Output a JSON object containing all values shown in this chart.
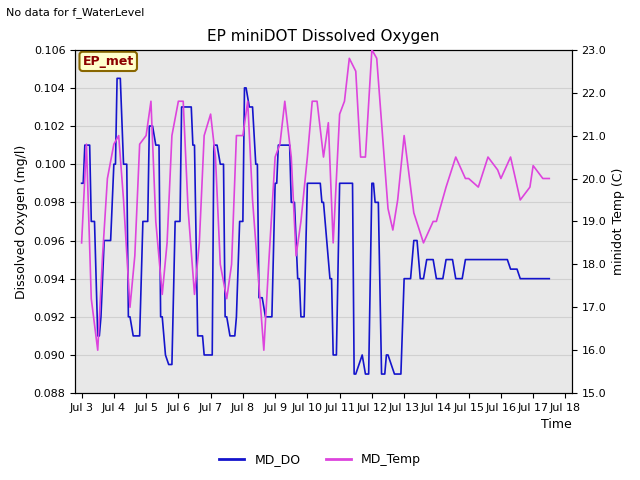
{
  "title": "EP miniDOT Dissolved Oxygen",
  "no_data_text": "No data for f_WaterLevel",
  "ep_met_label": "EP_met",
  "xlabel": "Time",
  "ylabel_left": "Dissolved Oxygen (mg/l)",
  "ylabel_right": "minidot Temp (C)",
  "ylim_left": [
    0.088,
    0.106
  ],
  "ylim_right": [
    15.0,
    23.0
  ],
  "yticks_left": [
    0.088,
    0.09,
    0.092,
    0.094,
    0.096,
    0.098,
    0.1,
    0.102,
    0.104,
    0.106
  ],
  "yticks_right": [
    15.0,
    16.0,
    17.0,
    18.0,
    19.0,
    20.0,
    21.0,
    22.0,
    23.0
  ],
  "xtick_labels": [
    "Jul 3",
    "Jul 4",
    "Jul 5",
    "Jul 6",
    "Jul 7",
    "Jul 8",
    "Jul 9",
    "Jul 10",
    "Jul 11",
    "Jul 12",
    "Jul 13",
    "Jul 14",
    "Jul 15",
    "Jul 16",
    "Jul 17",
    "Jul 18"
  ],
  "xtick_positions": [
    3,
    4,
    5,
    6,
    7,
    8,
    9,
    10,
    11,
    12,
    13,
    14,
    15,
    16,
    17,
    18
  ],
  "xlim": [
    2.8,
    18.2
  ],
  "grid_color": "#d0d0d0",
  "bg_color": "#e8e8e8",
  "line_do_color": "#1414cc",
  "line_temp_color": "#dd44dd",
  "legend_do": "MD_DO",
  "legend_temp": "MD_Temp",
  "do_x": [
    3.0,
    3.05,
    3.1,
    3.2,
    3.25,
    3.3,
    3.4,
    3.5,
    3.55,
    3.6,
    3.7,
    3.75,
    3.8,
    3.9,
    4.0,
    4.05,
    4.1,
    4.15,
    4.2,
    4.3,
    4.4,
    4.45,
    4.5,
    4.6,
    4.7,
    4.75,
    4.8,
    4.9,
    5.0,
    5.05,
    5.1,
    5.2,
    5.3,
    5.4,
    5.45,
    5.5,
    5.6,
    5.7,
    5.75,
    5.8,
    5.9,
    6.0,
    6.05,
    6.1,
    6.2,
    6.3,
    6.4,
    6.45,
    6.5,
    6.6,
    6.7,
    6.75,
    6.8,
    6.9,
    7.0,
    7.05,
    7.1,
    7.2,
    7.3,
    7.4,
    7.45,
    7.5,
    7.6,
    7.7,
    7.75,
    7.8,
    7.9,
    8.0,
    8.05,
    8.1,
    8.15,
    8.2,
    8.3,
    8.4,
    8.45,
    8.5,
    8.6,
    8.7,
    8.75,
    8.8,
    8.9,
    9.0,
    9.05,
    9.1,
    9.2,
    9.3,
    9.4,
    9.45,
    9.5,
    9.6,
    9.7,
    9.75,
    9.8,
    9.9,
    10.0,
    10.05,
    10.1,
    10.2,
    10.3,
    10.4,
    10.45,
    10.5,
    10.6,
    10.7,
    10.75,
    10.8,
    10.9,
    11.0,
    11.05,
    11.1,
    11.2,
    11.3,
    11.4,
    11.45,
    11.5,
    11.6,
    11.7,
    11.75,
    11.8,
    11.9,
    12.0,
    12.05,
    12.1,
    12.2,
    12.3,
    12.4,
    12.45,
    12.5,
    12.6,
    12.7,
    12.75,
    12.8,
    12.9,
    13.0,
    13.1,
    13.2,
    13.3,
    13.4,
    13.5,
    13.6,
    13.7,
    13.8,
    13.9,
    14.0,
    14.1,
    14.2,
    14.3,
    14.4,
    14.5,
    14.6,
    14.7,
    14.8,
    14.9,
    15.0,
    15.1,
    15.2,
    15.3,
    15.4,
    15.5,
    15.6,
    15.7,
    15.8,
    15.9,
    16.0,
    16.1,
    16.2,
    16.3,
    16.4,
    16.5,
    16.6,
    16.7,
    16.8,
    16.9,
    17.0,
    17.1,
    17.2,
    17.3,
    17.4,
    17.5
  ],
  "do_y": [
    0.099,
    0.099,
    0.101,
    0.101,
    0.101,
    0.097,
    0.097,
    0.091,
    0.091,
    0.092,
    0.096,
    0.096,
    0.096,
    0.096,
    0.1,
    0.1,
    0.1045,
    0.1045,
    0.1045,
    0.1,
    0.1,
    0.092,
    0.092,
    0.091,
    0.091,
    0.091,
    0.091,
    0.097,
    0.097,
    0.097,
    0.102,
    0.102,
    0.101,
    0.101,
    0.092,
    0.092,
    0.09,
    0.0895,
    0.0895,
    0.0895,
    0.097,
    0.097,
    0.097,
    0.103,
    0.103,
    0.103,
    0.103,
    0.101,
    0.101,
    0.091,
    0.091,
    0.091,
    0.09,
    0.09,
    0.09,
    0.09,
    0.101,
    0.101,
    0.1,
    0.1,
    0.092,
    0.092,
    0.091,
    0.091,
    0.091,
    0.092,
    0.097,
    0.097,
    0.104,
    0.104,
    0.1035,
    0.103,
    0.103,
    0.1,
    0.1,
    0.093,
    0.093,
    0.092,
    0.092,
    0.092,
    0.092,
    0.099,
    0.099,
    0.101,
    0.101,
    0.101,
    0.101,
    0.101,
    0.098,
    0.098,
    0.094,
    0.094,
    0.092,
    0.092,
    0.099,
    0.099,
    0.099,
    0.099,
    0.099,
    0.099,
    0.098,
    0.098,
    0.096,
    0.094,
    0.094,
    0.09,
    0.09,
    0.099,
    0.099,
    0.099,
    0.099,
    0.099,
    0.099,
    0.089,
    0.089,
    0.0895,
    0.09,
    0.0895,
    0.089,
    0.089,
    0.099,
    0.099,
    0.098,
    0.098,
    0.089,
    0.089,
    0.09,
    0.09,
    0.0895,
    0.089,
    0.089,
    0.089,
    0.089,
    0.094,
    0.094,
    0.094,
    0.096,
    0.096,
    0.094,
    0.094,
    0.095,
    0.095,
    0.095,
    0.094,
    0.094,
    0.094,
    0.095,
    0.095,
    0.095,
    0.094,
    0.094,
    0.094,
    0.095,
    0.095,
    0.095,
    0.095,
    0.095,
    0.095,
    0.095,
    0.095,
    0.095,
    0.095,
    0.095,
    0.095,
    0.095,
    0.095,
    0.0945,
    0.0945,
    0.0945,
    0.094,
    0.094,
    0.094,
    0.094,
    0.094,
    0.094,
    0.094,
    0.094,
    0.094,
    0.094
  ],
  "temp_x": [
    3.0,
    3.15,
    3.3,
    3.5,
    3.65,
    3.8,
    4.0,
    4.15,
    4.3,
    4.5,
    4.65,
    4.8,
    5.0,
    5.15,
    5.3,
    5.5,
    5.65,
    5.8,
    6.0,
    6.15,
    6.3,
    6.5,
    6.65,
    6.8,
    7.0,
    7.15,
    7.3,
    7.5,
    7.65,
    7.8,
    8.0,
    8.15,
    8.3,
    8.5,
    8.65,
    8.8,
    9.0,
    9.15,
    9.3,
    9.5,
    9.65,
    9.8,
    10.0,
    10.15,
    10.3,
    10.5,
    10.65,
    10.8,
    11.0,
    11.15,
    11.3,
    11.5,
    11.65,
    11.8,
    12.0,
    12.15,
    12.3,
    12.5,
    12.65,
    12.8,
    13.0,
    13.3,
    13.6,
    13.9,
    14.0,
    14.3,
    14.6,
    14.9,
    15.0,
    15.3,
    15.6,
    15.9,
    16.0,
    16.3,
    16.6,
    16.9,
    17.0,
    17.3,
    17.5
  ],
  "temp_y": [
    18.5,
    20.8,
    17.2,
    16.0,
    18.2,
    20.0,
    20.8,
    21.0,
    19.5,
    17.0,
    18.2,
    20.8,
    21.0,
    21.8,
    19.0,
    17.3,
    18.5,
    21.0,
    21.8,
    21.8,
    19.3,
    17.3,
    18.5,
    21.0,
    21.5,
    20.5,
    18.0,
    17.2,
    18.0,
    21.0,
    21.0,
    21.8,
    19.5,
    17.5,
    16.0,
    18.0,
    20.5,
    20.8,
    21.8,
    20.5,
    18.2,
    19.0,
    20.5,
    21.8,
    21.8,
    20.5,
    21.3,
    18.5,
    21.5,
    21.8,
    22.8,
    22.5,
    20.5,
    20.5,
    23.0,
    22.8,
    21.3,
    19.3,
    18.8,
    19.5,
    21.0,
    19.2,
    18.5,
    19.0,
    19.0,
    19.8,
    20.5,
    20.0,
    20.0,
    19.8,
    20.5,
    20.2,
    20.0,
    20.5,
    19.5,
    19.8,
    20.3,
    20.0,
    20.0
  ]
}
